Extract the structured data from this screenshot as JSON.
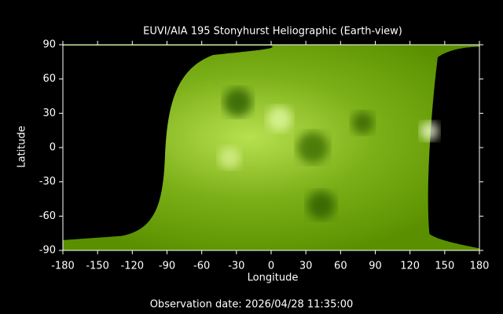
{
  "chart_data": {
    "type": "image",
    "title": "EUVI/AIA 195 Stonyhurst Heliographic (Earth-view)",
    "xlabel": "Longitude",
    "ylabel": "Latitude",
    "xlim": [
      -180,
      180
    ],
    "ylim": [
      -90,
      90
    ],
    "xticks": [
      -180,
      -150,
      -120,
      -90,
      -60,
      -30,
      0,
      30,
      60,
      90,
      120,
      150,
      180
    ],
    "yticks": [
      -90,
      -60,
      -30,
      0,
      30,
      60,
      90
    ],
    "footer": "Observation date: 2026/04/28 11:35:00"
  }
}
